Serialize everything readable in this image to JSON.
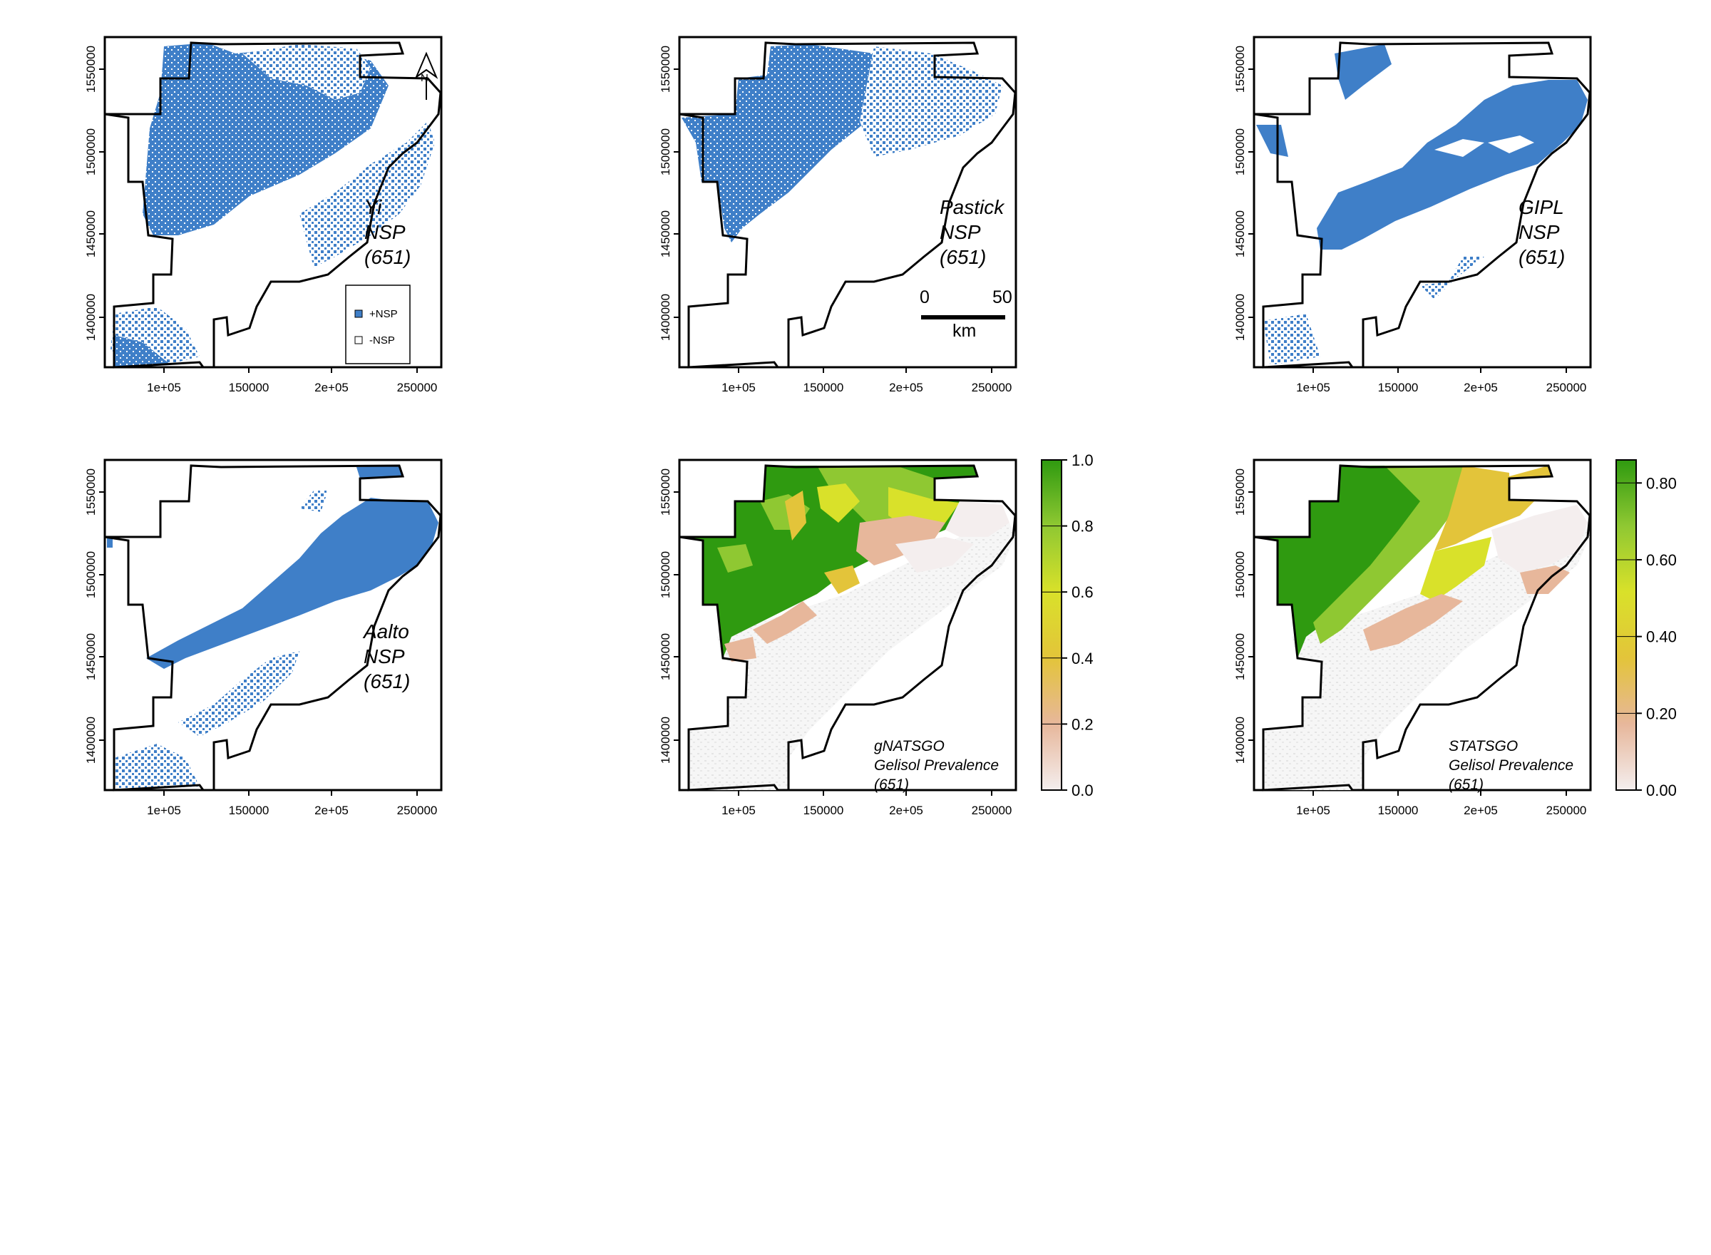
{
  "figure": {
    "x_ticks": [
      "1e+05",
      "150000",
      "2e+05",
      "250000"
    ],
    "y_ticks": [
      "1400000",
      "1450000",
      "1500000",
      "1550000"
    ],
    "panels": [
      {
        "id": "yi",
        "label_lines": [
          "Yi",
          "NSP",
          "(651)"
        ],
        "kind": "binary"
      },
      {
        "id": "pastick",
        "label_lines": [
          "Pastick",
          "NSP",
          "(651)"
        ],
        "kind": "binary"
      },
      {
        "id": "gipl",
        "label_lines": [
          "GIPL",
          "NSP",
          "(651)"
        ],
        "kind": "binary"
      },
      {
        "id": "aalto",
        "label_lines": [
          "Aalto",
          "NSP",
          "(651)"
        ],
        "kind": "binary"
      },
      {
        "id": "gnatsgo",
        "label_lines": [
          "gNATSGO",
          "Gelisol Prevalence",
          "(651)"
        ],
        "kind": "continuous"
      },
      {
        "id": "statsgo",
        "label_lines": [
          "STATSGO",
          "Gelisol Prevalence",
          "(651)"
        ],
        "kind": "continuous"
      }
    ],
    "legend": {
      "items": [
        {
          "label": "+NSP",
          "color": "#3f7fc8"
        },
        {
          "label": "-NSP",
          "color": "#ffffff"
        }
      ]
    },
    "north_arrow": {
      "label": "N"
    },
    "scalebar": {
      "start": "0",
      "end": "50",
      "unit": "km"
    },
    "colorbars": [
      {
        "panel": "gnatsgo",
        "ticks": [
          "0.0",
          "0.2",
          "0.4",
          "0.6",
          "0.8",
          "1.0"
        ]
      },
      {
        "panel": "statsgo",
        "ticks": [
          "0.00",
          "0.20",
          "0.40",
          "0.60",
          "0.80"
        ]
      }
    ],
    "colors": {
      "nsp_blue": "#3f7fc8",
      "ramp": [
        "#f4eeee",
        "#e7b79b",
        "#e3c43a",
        "#d9e12a",
        "#8fc832",
        "#2f9a10"
      ],
      "background_gray": "#eeeeee",
      "boundary": "#000000"
    }
  }
}
